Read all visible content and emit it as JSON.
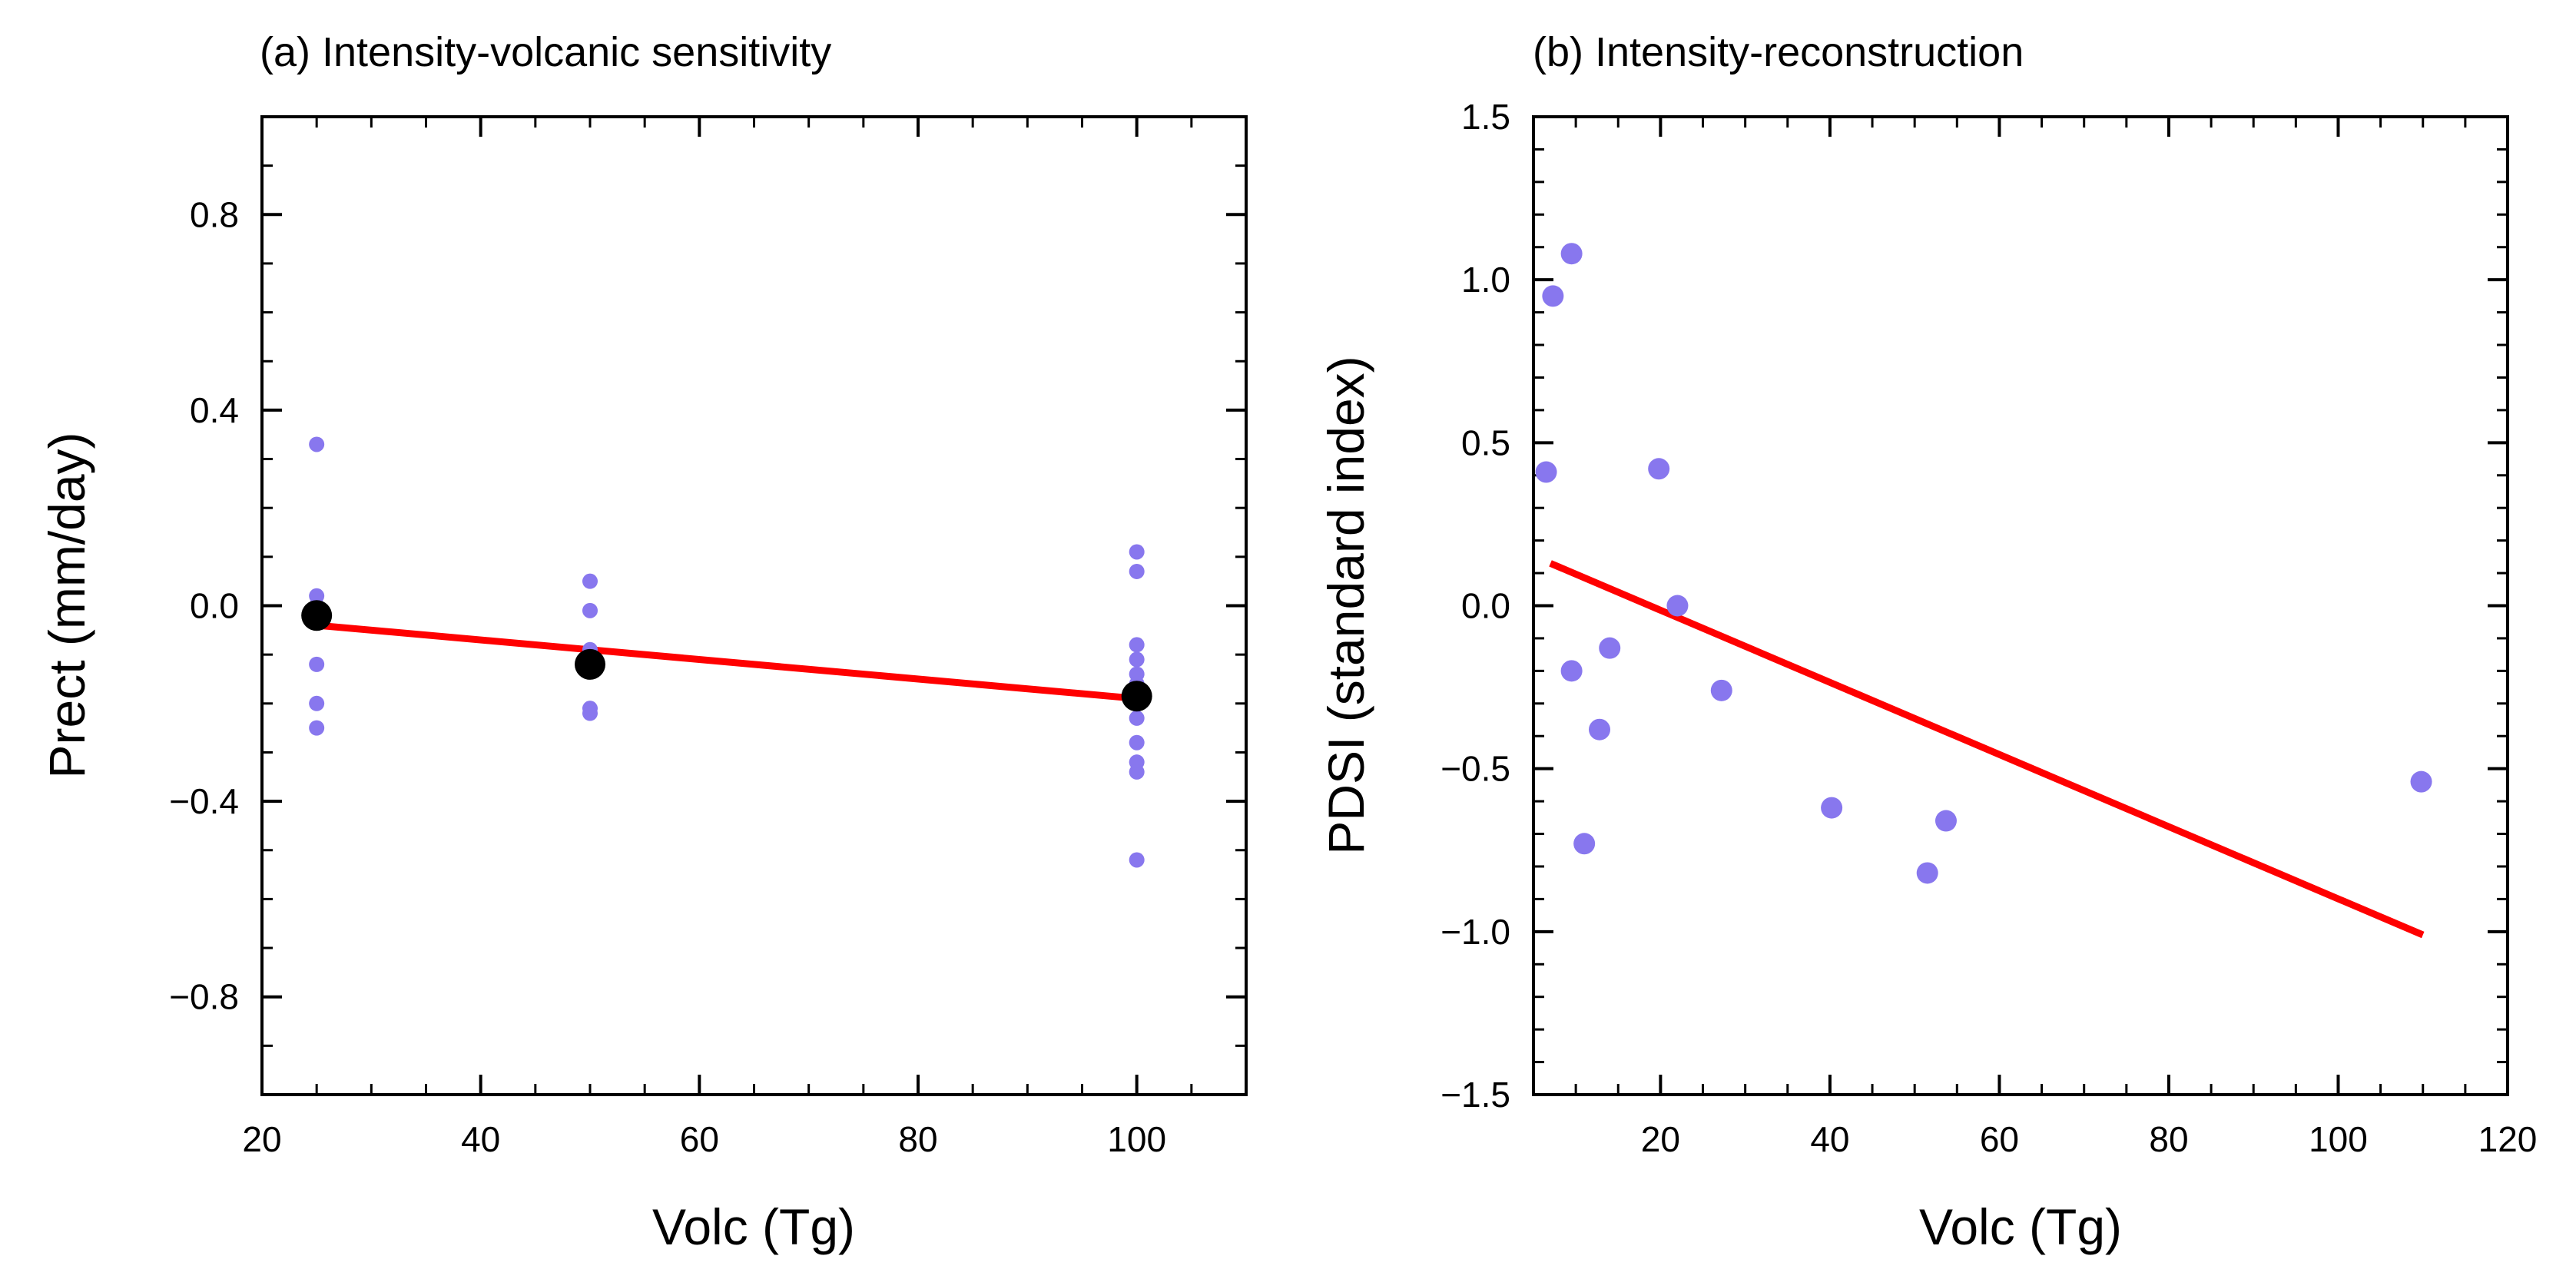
{
  "chart_data": [
    {
      "type": "scatter",
      "title": "(a) Intensity-volcanic sensitivity",
      "xlabel": "Volc (Tg)",
      "ylabel": "Prect (mm/day)",
      "xlim": [
        20,
        110
      ],
      "ylim": [
        -1.0,
        1.0
      ],
      "x_ticks": [
        20,
        40,
        60,
        80,
        100
      ],
      "x_tick_labels": [
        "20",
        "40",
        "60",
        "80",
        "100"
      ],
      "y_ticks": [
        -0.8,
        -0.4,
        0.0,
        0.4,
        0.8
      ],
      "y_tick_labels": [
        "−0.8",
        "−0.4",
        "0.0",
        "0.4",
        "0.8"
      ],
      "grid": false,
      "colors": {
        "members": "#8877ee",
        "means": "#000000",
        "fit": "#ff0000"
      },
      "series": [
        {
          "role": "members",
          "points": [
            {
              "x": 25,
              "y": 0.33
            },
            {
              "x": 25,
              "y": 0.02
            },
            {
              "x": 25,
              "y": 0.0
            },
            {
              "x": 25,
              "y": -0.01
            },
            {
              "x": 25,
              "y": -0.03
            },
            {
              "x": 25,
              "y": -0.12
            },
            {
              "x": 25,
              "y": -0.2
            },
            {
              "x": 25,
              "y": -0.25
            },
            {
              "x": 50,
              "y": 0.05
            },
            {
              "x": 50,
              "y": -0.01
            },
            {
              "x": 50,
              "y": -0.09
            },
            {
              "x": 50,
              "y": -0.1
            },
            {
              "x": 50,
              "y": -0.12
            },
            {
              "x": 50,
              "y": -0.13
            },
            {
              "x": 50,
              "y": -0.21
            },
            {
              "x": 50,
              "y": -0.22
            },
            {
              "x": 100,
              "y": 0.11
            },
            {
              "x": 100,
              "y": 0.07
            },
            {
              "x": 100,
              "y": -0.08
            },
            {
              "x": 100,
              "y": -0.11
            },
            {
              "x": 100,
              "y": -0.14
            },
            {
              "x": 100,
              "y": -0.16
            },
            {
              "x": 100,
              "y": -0.23
            },
            {
              "x": 100,
              "y": -0.28
            },
            {
              "x": 100,
              "y": -0.32
            },
            {
              "x": 100,
              "y": -0.34
            },
            {
              "x": 100,
              "y": -0.52
            }
          ]
        },
        {
          "role": "means",
          "points": [
            {
              "x": 25,
              "y": -0.02
            },
            {
              "x": 50,
              "y": -0.12
            },
            {
              "x": 100,
              "y": -0.185
            }
          ]
        }
      ],
      "fit_line": {
        "x": [
          25,
          100
        ],
        "y": [
          -0.04,
          -0.19
        ]
      }
    },
    {
      "type": "scatter",
      "title": "(b) Intensity-reconstruction",
      "xlabel": "Volc (Tg)",
      "ylabel": "PDSI (standard index)",
      "xlim": [
        5,
        120
      ],
      "ylim": [
        -1.5,
        1.5
      ],
      "x_ticks": [
        20,
        40,
        60,
        80,
        100,
        120
      ],
      "x_tick_labels": [
        "20",
        "40",
        "60",
        "80",
        "100",
        "120"
      ],
      "y_ticks": [
        -1.5,
        -1.0,
        -0.5,
        0.0,
        0.5,
        1.0,
        1.5
      ],
      "y_tick_labels": [
        "−1.5",
        "−1.0",
        "−0.5",
        "0.0",
        "0.5",
        "1.0",
        "1.5"
      ],
      "grid": false,
      "colors": {
        "points": "#8877ee",
        "fit": "#ff0000"
      },
      "series": [
        {
          "role": "events",
          "points": [
            {
              "x": 6.5,
              "y": 0.41
            },
            {
              "x": 7.3,
              "y": 0.95
            },
            {
              "x": 9.5,
              "y": 1.08
            },
            {
              "x": 9.5,
              "y": -0.2
            },
            {
              "x": 11,
              "y": -0.73
            },
            {
              "x": 12.8,
              "y": -0.38
            },
            {
              "x": 14,
              "y": -0.13
            },
            {
              "x": 19.8,
              "y": 0.42
            },
            {
              "x": 22,
              "y": 0.0
            },
            {
              "x": 27.2,
              "y": -0.26
            },
            {
              "x": 40.2,
              "y": -0.62
            },
            {
              "x": 51.5,
              "y": -0.82
            },
            {
              "x": 53.7,
              "y": -0.66
            },
            {
              "x": 109.8,
              "y": -0.54
            }
          ]
        }
      ],
      "fit_line": {
        "x": [
          7,
          110
        ],
        "y": [
          0.13,
          -1.01
        ]
      }
    }
  ]
}
